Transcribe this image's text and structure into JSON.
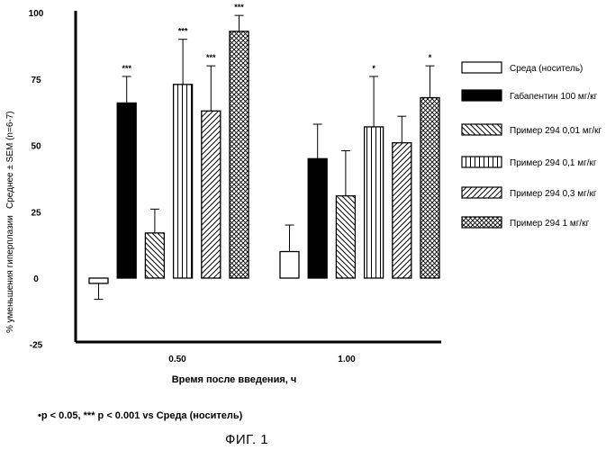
{
  "chart_data": {
    "type": "bar",
    "title": "",
    "ylabel": "% уменьшения гиперплазии",
    "ylabel2": "Среднее ± SEM (n=6-7)",
    "xlabel": "Время после введения, ч",
    "ylim": [
      -25,
      100
    ],
    "yticks": [
      "100",
      "75",
      "50",
      "25",
      "0",
      "-25"
    ],
    "ytick_values": [
      100,
      75,
      50,
      25,
      0,
      -25
    ],
    "categories": [
      "0.50",
      "1.00"
    ],
    "series": [
      {
        "name": "Среда (носитель)",
        "pattern": "empty",
        "values": [
          -2,
          10
        ],
        "errors": [
          6,
          10
        ],
        "sig": [
          "",
          ""
        ]
      },
      {
        "name": "Габапентин 100 мг/кг",
        "pattern": "solid",
        "values": [
          66,
          45
        ],
        "errors": [
          10,
          13
        ],
        "sig": [
          "***",
          ""
        ]
      },
      {
        "name": "Пример 294 0,01 мг/кг",
        "pattern": "diag-back",
        "values": [
          17,
          31
        ],
        "errors": [
          9,
          17
        ],
        "sig": [
          "",
          ""
        ]
      },
      {
        "name": "Пример 294  0,1 мг/кг",
        "pattern": "vertical",
        "values": [
          73,
          57
        ],
        "errors": [
          17,
          19
        ],
        "sig": [
          "***",
          "*"
        ]
      },
      {
        "name": "Пример 294  0,3 мг/кг",
        "pattern": "diag-fwd",
        "values": [
          63,
          51
        ],
        "errors": [
          17,
          10
        ],
        "sig": [
          "***",
          ""
        ]
      },
      {
        "name": "Пример 294  1 мг/кг",
        "pattern": "cross",
        "values": [
          93,
          68
        ],
        "errors": [
          6,
          12
        ],
        "sig": [
          "***",
          "*"
        ]
      }
    ]
  },
  "footnote": {
    "prefix": "•p < 0.05, ",
    "stars": "***",
    "rest": " p < 0.001 vs Среда (носитель)"
  },
  "caption": "ФИГ. 1",
  "colors": {
    "ink": "#000000",
    "background": "#ffffff"
  }
}
